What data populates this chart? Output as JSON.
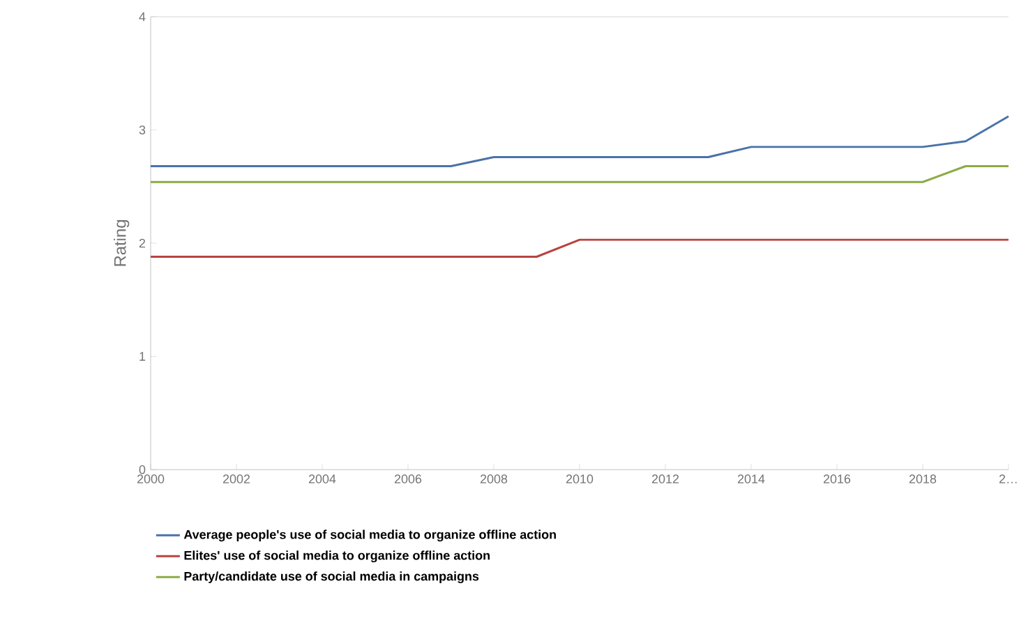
{
  "chart_data": {
    "type": "line",
    "ylabel": "Rating",
    "x": [
      2000,
      2001,
      2002,
      2003,
      2004,
      2005,
      2006,
      2007,
      2008,
      2009,
      2010,
      2011,
      2012,
      2013,
      2014,
      2015,
      2016,
      2017,
      2018,
      2019,
      2020
    ],
    "series": [
      {
        "name": "Average people's use of social media to organize offline action",
        "color": "#4a72a8",
        "values": [
          2.68,
          2.68,
          2.68,
          2.68,
          2.68,
          2.68,
          2.68,
          2.68,
          2.76,
          2.76,
          2.76,
          2.76,
          2.76,
          2.76,
          2.85,
          2.85,
          2.85,
          2.85,
          2.85,
          2.9,
          3.12
        ]
      },
      {
        "name": "Elites' use of social media to organize offline action",
        "color": "#b8433f",
        "values": [
          1.88,
          1.88,
          1.88,
          1.88,
          1.88,
          1.88,
          1.88,
          1.88,
          1.88,
          1.88,
          2.03,
          2.03,
          2.03,
          2.03,
          2.03,
          2.03,
          2.03,
          2.03,
          2.03,
          2.03,
          2.03
        ]
      },
      {
        "name": "Party/candidate use of social media in campaigns",
        "color": "#8cab45",
        "values": [
          2.54,
          2.54,
          2.54,
          2.54,
          2.54,
          2.54,
          2.54,
          2.54,
          2.54,
          2.54,
          2.54,
          2.54,
          2.54,
          2.54,
          2.54,
          2.54,
          2.54,
          2.54,
          2.54,
          2.68,
          2.68
        ]
      }
    ],
    "xlim": [
      2000,
      2020
    ],
    "xticks": [
      2000,
      2002,
      2004,
      2006,
      2008,
      2010,
      2012,
      2014,
      2016,
      2018,
      {
        "value": 2020,
        "label": "2…"
      }
    ],
    "ylim": [
      0,
      4
    ],
    "yticks": [
      0,
      1,
      2,
      3,
      4
    ],
    "grid": false,
    "legend": "bottom",
    "marker": "none",
    "line_style": "solid"
  }
}
